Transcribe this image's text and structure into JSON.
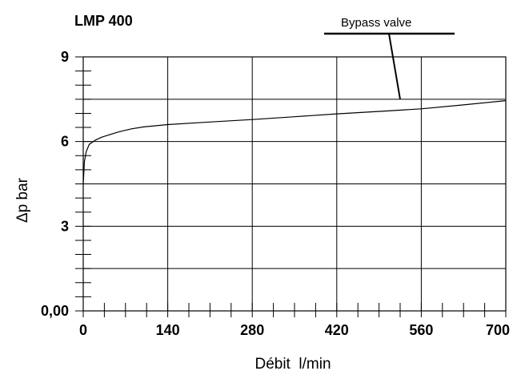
{
  "chart_data": {
    "type": "line",
    "title": "LMP 400",
    "xlabel": "Débit  l/min",
    "ylabel": "Δp bar",
    "xlim": [
      0,
      700
    ],
    "ylim": [
      0,
      9
    ],
    "x_ticks": [
      0,
      140,
      280,
      420,
      560,
      700
    ],
    "x_tick_labels": [
      "0",
      "140",
      "280",
      "420",
      "560",
      "700"
    ],
    "y_ticks": [
      0,
      3,
      6,
      9
    ],
    "y_tick_labels": [
      "0,00",
      "3",
      "6",
      "9"
    ],
    "grid": true,
    "series": [
      {
        "x": [
          0,
          2,
          5,
          10,
          20,
          30,
          40,
          60,
          80,
          100,
          140,
          200,
          280,
          350,
          420,
          500,
          560,
          630,
          700
        ],
        "y": [
          4.5,
          5.3,
          5.65,
          5.9,
          6.05,
          6.15,
          6.22,
          6.35,
          6.45,
          6.52,
          6.6,
          6.68,
          6.78,
          6.88,
          6.98,
          7.08,
          7.16,
          7.3,
          7.45
        ]
      }
    ],
    "annotations": [
      {
        "text": "Bypass valve",
        "x": 520,
        "y": 7.1
      }
    ]
  }
}
